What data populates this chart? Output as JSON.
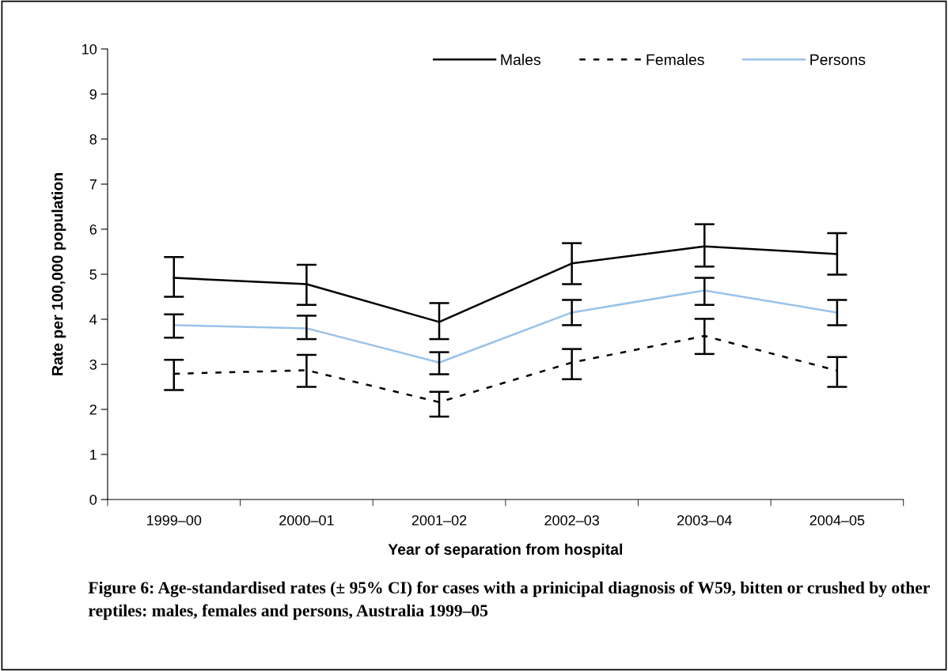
{
  "chart_data": {
    "type": "line",
    "xlabel": "Year of separation from hospital",
    "ylabel": "Rate per 100,000 population",
    "categories": [
      "1999–00",
      "2000–01",
      "2001–02",
      "2002–03",
      "2003–04",
      "2004–05"
    ],
    "series": [
      {
        "name": "Males",
        "color": "#000000",
        "line_style": "solid",
        "values": [
          4.92,
          4.78,
          3.94,
          5.24,
          5.62,
          5.45
        ],
        "errors": [
          [
            4.5,
            5.38
          ],
          [
            4.32,
            5.21
          ],
          [
            3.56,
            4.36
          ],
          [
            4.78,
            5.69
          ],
          [
            5.17,
            6.11
          ],
          [
            4.99,
            5.91
          ]
        ]
      },
      {
        "name": "Females",
        "color": "#000000",
        "line_style": "dashed",
        "values": [
          2.79,
          2.87,
          2.16,
          3.04,
          3.63,
          2.86
        ],
        "errors": [
          [
            2.43,
            3.1
          ],
          [
            2.5,
            3.21
          ],
          [
            1.84,
            2.39
          ],
          [
            2.67,
            3.34
          ],
          [
            3.23,
            4.01
          ],
          [
            2.5,
            3.16
          ]
        ]
      },
      {
        "name": "Persons",
        "color": "#99c2ea",
        "line_style": "solid",
        "values": [
          3.87,
          3.8,
          3.04,
          4.15,
          4.64,
          4.15
        ],
        "errors": [
          [
            3.59,
            4.11
          ],
          [
            3.56,
            4.08
          ],
          [
            2.78,
            3.27
          ],
          [
            3.87,
            4.43
          ],
          [
            4.32,
            4.92
          ],
          [
            3.87,
            4.43
          ]
        ]
      }
    ],
    "ylim": [
      0,
      10
    ],
    "yticks": [
      0,
      1,
      2,
      3,
      4,
      5,
      6,
      7,
      8,
      9,
      10
    ],
    "grid": false,
    "legend": "top right",
    "marker": "none",
    "annotations": [
      "Figure 6: Age-standardised rates (± 95% CI) for cases with a prinicipal diagnosis of W59, bitten or crushed by other reptiles: males, females and persons, Australia 1999–05"
    ]
  }
}
